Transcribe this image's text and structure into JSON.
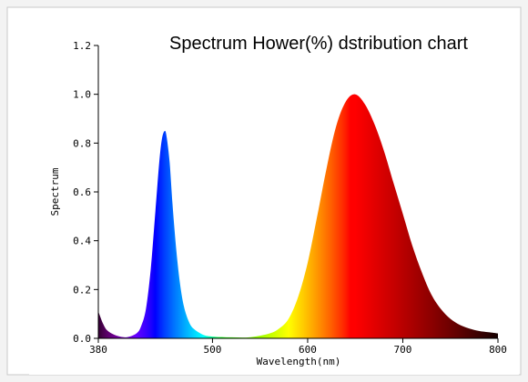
{
  "chart_data": {
    "type": "area",
    "title": "Spectrum Hower(%) dstribution chart",
    "xlabel": "Wavelength(nm)",
    "ylabel": "Spectrum",
    "xlim": [
      380,
      800
    ],
    "ylim": [
      0,
      1.2
    ],
    "x_ticks": [
      {
        "value": 380,
        "label": "380"
      },
      {
        "value": 500,
        "label": "500"
      },
      {
        "value": 600,
        "label": "600"
      },
      {
        "value": 700,
        "label": "700"
      },
      {
        "value": 800,
        "label": "800"
      }
    ],
    "y_ticks": [
      {
        "value": 0.0,
        "label": "0.0"
      },
      {
        "value": 0.2,
        "label": "0.2"
      },
      {
        "value": 0.4,
        "label": "0.4"
      },
      {
        "value": 0.6,
        "label": "0.6"
      },
      {
        "value": 0.8,
        "label": "0.8"
      },
      {
        "value": 1.0,
        "label": "1.0"
      },
      {
        "value": 1.2,
        "label": "1.2"
      }
    ],
    "grid": false,
    "legend": "none",
    "fill": "visible-spectrum-color-by-wavelength",
    "x": [
      380,
      385,
      390,
      400,
      410,
      420,
      425,
      430,
      435,
      440,
      444,
      447,
      450,
      452,
      455,
      458,
      462,
      466,
      470,
      475,
      480,
      490,
      500,
      520,
      540,
      560,
      570,
      580,
      590,
      600,
      610,
      620,
      630,
      640,
      650,
      660,
      670,
      680,
      690,
      700,
      710,
      720,
      730,
      740,
      750,
      760,
      770,
      780,
      790,
      800
    ],
    "y": [
      0.11,
      0.06,
      0.03,
      0.01,
      0.005,
      0.02,
      0.05,
      0.12,
      0.28,
      0.52,
      0.72,
      0.82,
      0.85,
      0.82,
      0.72,
      0.55,
      0.36,
      0.22,
      0.13,
      0.07,
      0.04,
      0.015,
      0.007,
      0.004,
      0.005,
      0.02,
      0.04,
      0.08,
      0.17,
      0.31,
      0.5,
      0.7,
      0.87,
      0.97,
      1.0,
      0.96,
      0.88,
      0.77,
      0.64,
      0.51,
      0.38,
      0.27,
      0.18,
      0.12,
      0.08,
      0.055,
      0.04,
      0.03,
      0.025,
      0.02
    ]
  }
}
